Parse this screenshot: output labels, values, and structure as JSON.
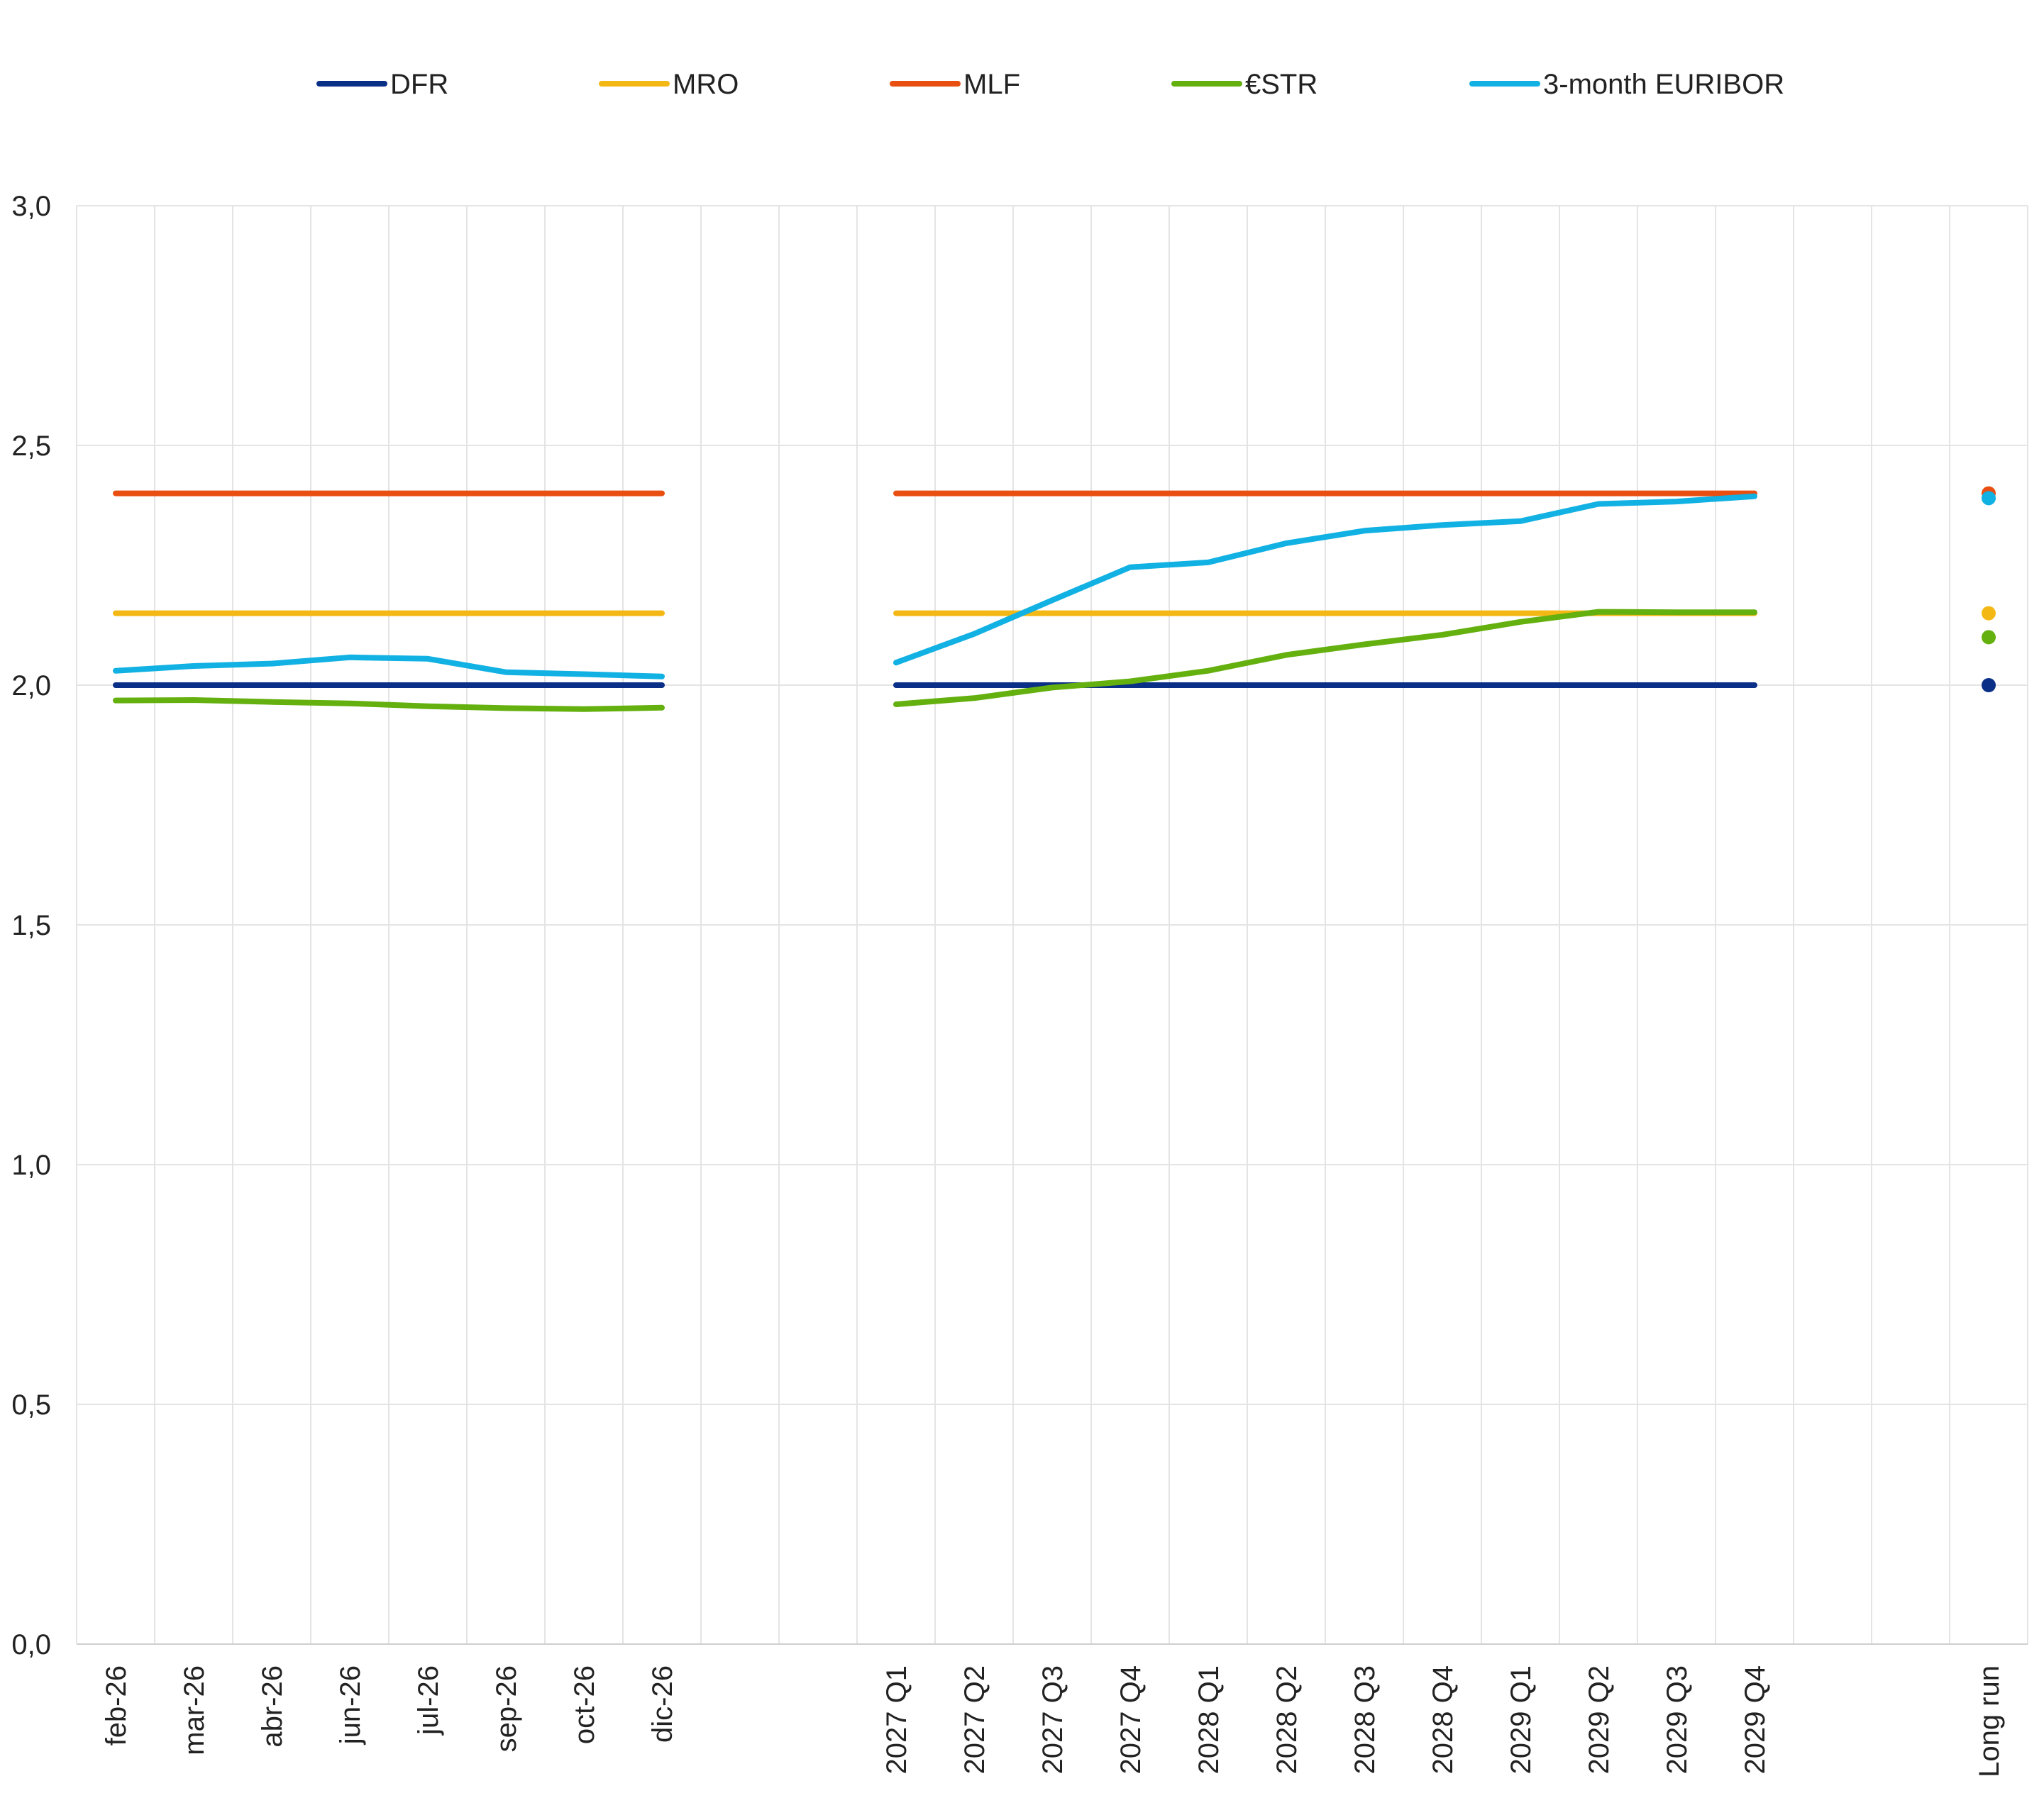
{
  "chart_data": {
    "type": "line",
    "title": "",
    "xlabel": "",
    "ylabel": "",
    "ylim": [
      0,
      3
    ],
    "y_ticks": [
      "0,0",
      "0,5",
      "1,0",
      "1,5",
      "2,0",
      "2,5",
      "3,0"
    ],
    "y_tick_values": [
      0,
      0.5,
      1,
      1.5,
      2,
      2.5,
      3
    ],
    "grid": true,
    "legend_position": "top",
    "slots": [
      "feb-26",
      "mar-26",
      "abr-26",
      "jun-26",
      "jul-26",
      "sep-26",
      "oct-26",
      "dic-26",
      "",
      "",
      "2027 Q1",
      "2027 Q2",
      "2027 Q3",
      "2027 Q4",
      "2028 Q1",
      "2028 Q2",
      "2028 Q3",
      "2028 Q4",
      "2029 Q1",
      "2029 Q2",
      "2029 Q3",
      "2029 Q4",
      "",
      "",
      "Long run"
    ],
    "categories": [
      "feb-26",
      "mar-26",
      "abr-26",
      "jun-26",
      "jul-26",
      "sep-26",
      "oct-26",
      "dic-26",
      "2027 Q1",
      "2027 Q2",
      "2027 Q3",
      "2027 Q4",
      "2028 Q1",
      "2028 Q2",
      "2028 Q3",
      "2028 Q4",
      "2029 Q1",
      "2029 Q2",
      "2029 Q3",
      "2029 Q4",
      "Long run"
    ],
    "series": [
      {
        "name": "DFR",
        "color": "#0a2f87",
        "monthly": [
          2.0,
          2.0,
          2.0,
          2.0,
          2.0,
          2.0,
          2.0,
          2.0
        ],
        "quarterly": [
          2.0,
          2.0,
          2.0,
          2.0,
          2.0,
          2.0,
          2.0,
          2.0,
          2.0,
          2.0,
          2.0,
          2.0
        ],
        "long_run": 2.0
      },
      {
        "name": "MRO",
        "color": "#f4b815",
        "monthly": [
          2.15,
          2.15,
          2.15,
          2.15,
          2.15,
          2.15,
          2.15,
          2.15
        ],
        "quarterly": [
          2.15,
          2.15,
          2.15,
          2.15,
          2.15,
          2.15,
          2.15,
          2.15,
          2.15,
          2.15,
          2.15,
          2.15
        ],
        "long_run": 2.15
      },
      {
        "name": "MLF",
        "color": "#e84f11",
        "monthly": [
          2.4,
          2.4,
          2.4,
          2.4,
          2.4,
          2.4,
          2.4,
          2.4
        ],
        "quarterly": [
          2.4,
          2.4,
          2.4,
          2.4,
          2.4,
          2.4,
          2.4,
          2.4,
          2.4,
          2.4,
          2.4,
          2.4
        ],
        "long_run": 2.4
      },
      {
        "name": "€STR",
        "color": "#64b00f",
        "monthly": [
          1.968,
          1.969,
          1.965,
          1.962,
          1.956,
          1.952,
          1.95,
          1.953
        ],
        "quarterly": [
          1.96,
          1.973,
          1.995,
          2.008,
          2.03,
          2.063,
          2.085,
          2.105,
          2.132,
          2.153,
          2.152,
          2.152
        ],
        "long_run": 2.1
      },
      {
        "name": "3-month EURIBOR",
        "color": "#12b1e3",
        "monthly": [
          2.03,
          2.04,
          2.045,
          2.058,
          2.055,
          2.027,
          2.023,
          2.018
        ],
        "quarterly": [
          2.047,
          2.107,
          2.177,
          2.246,
          2.256,
          2.296,
          2.322,
          2.334,
          2.342,
          2.378,
          2.383,
          2.394
        ],
        "long_run": 2.39
      }
    ]
  }
}
